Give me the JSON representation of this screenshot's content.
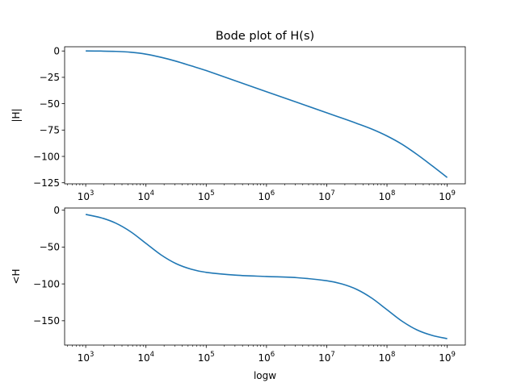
{
  "chart_data": {
    "type": "line",
    "title": "Bode plot of H(s)",
    "x_values_log10": [
      3.0,
      3.25,
      3.5,
      3.75,
      4.0,
      4.25,
      4.5,
      4.75,
      5.0,
      5.5,
      6.0,
      6.5,
      7.0,
      7.25,
      7.5,
      7.75,
      8.0,
      8.25,
      8.5,
      8.75,
      9.0
    ],
    "subplots": [
      {
        "name": "magnitude",
        "ylabel": "|H|",
        "xlabel": "",
        "xlim_log10": [
          2.65,
          9.3
        ],
        "ylim": [
          -126,
          4
        ],
        "yticks": [
          0,
          -25,
          -50,
          -75,
          -100,
          -125
        ],
        "ytick_labels": [
          "0",
          "−25",
          "−50",
          "−75",
          "−100",
          "−125"
        ],
        "xtick_exponents": [
          "3",
          "4",
          "5",
          "6",
          "7",
          "8",
          "9"
        ],
        "series": [
          {
            "name": "|H|",
            "color": "#1f77b4",
            "values": [
              0.0,
              -0.1,
              -0.4,
              -1.2,
              -3.0,
              -6.0,
              -9.7,
              -14.1,
              -18.6,
              -28.6,
              -38.6,
              -48.6,
              -58.6,
              -63.6,
              -68.7,
              -74.1,
              -80.6,
              -88.5,
              -98.2,
              -108.9,
              -120.0
            ]
          }
        ]
      },
      {
        "name": "phase",
        "ylabel": "<H",
        "xlabel": "logw",
        "xlim_log10": [
          2.65,
          9.3
        ],
        "ylim": [
          -183,
          3
        ],
        "yticks": [
          0,
          -50,
          -100,
          -150
        ],
        "ytick_labels": [
          "0",
          "−50",
          "−100",
          "−150"
        ],
        "xtick_exponents": [
          "3",
          "4",
          "5",
          "6",
          "7",
          "8",
          "9"
        ],
        "series": [
          {
            "name": "<H",
            "color": "#1f77b4",
            "values": [
              -5.7,
              -10.1,
              -17.6,
              -29.4,
              -45.0,
              -60.6,
              -72.5,
              -80.0,
              -84.3,
              -88.2,
              -89.9,
              -91.5,
              -95.7,
              -100.0,
              -107.5,
              -119.4,
              -135.0,
              -150.6,
              -162.5,
              -169.9,
              -174.3
            ]
          }
        ]
      }
    ]
  }
}
